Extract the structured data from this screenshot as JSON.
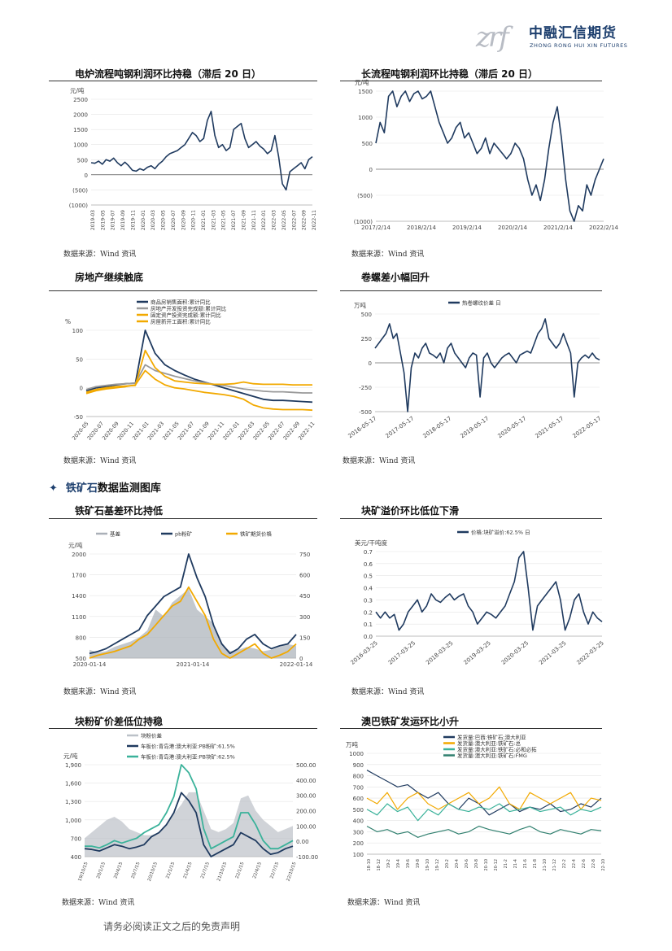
{
  "header": {
    "logo_mark": "zrf",
    "logo_cn": "中融汇信期货",
    "logo_en": "ZHONG RONG HUI XIN FUTURES"
  },
  "section": {
    "marker": "✦",
    "title_part1": "铁矿石",
    "title_part2": "数据监测图库"
  },
  "footer": {
    "disclaimer": "请务必阅读正文之后的免责声明"
  },
  "charts": [
    {
      "title": "电炉流程吨钢利润环比持稳（滞后 20 日）",
      "source": "数据来源：Wind 资讯"
    },
    {
      "title": "长流程吨钢利润环比持稳（滞后 20 日）",
      "source": "数据来源：Wind 资讯"
    },
    {
      "title": "房地产继续触底",
      "source": "数据来源：Wind 资讯"
    },
    {
      "title": "卷螺差小幅回升",
      "source": "数据来源：Wind 资讯"
    },
    {
      "title": "铁矿石基差环比持低",
      "source": "数据来源：Wind 资讯"
    },
    {
      "title": "块矿溢价环比低位下滑",
      "source": "数据来源：Wind 资讯"
    },
    {
      "title": "块粉矿价差低位持稳",
      "source": "数据来源：Wind 资讯"
    },
    {
      "title": "澳巴铁矿发运环比小升",
      "source": "数据来源：Wind 资讯"
    }
  ],
  "chart_data": [
    {
      "type": "line",
      "color": "#1f3a5f",
      "ylabel": "元/吨",
      "ylim": [
        -1000,
        2500
      ],
      "yticks": [
        "2500",
        "2000",
        "1500",
        "1000",
        "500",
        "0",
        "(500)",
        "(1000)"
      ],
      "xticks": [
        "2019-03",
        "2019-05",
        "2019-07",
        "2019-09",
        "2019-11",
        "2020-01",
        "2020-03",
        "2020-05",
        "2020-07",
        "2020-09",
        "2020-11",
        "2021-01",
        "2021-03",
        "2021-05",
        "2021-07",
        "2021-09",
        "2021-11",
        "2022-01",
        "2022-03",
        "2022-05",
        "2022-07",
        "2022-09",
        "2022-11"
      ],
      "values": [
        400,
        380,
        450,
        350,
        500,
        450,
        550,
        400,
        300,
        420,
        300,
        150,
        120,
        200,
        150,
        250,
        300,
        200,
        350,
        450,
        600,
        700,
        750,
        800,
        900,
        1000,
        1200,
        1400,
        1300,
        1100,
        1200,
        1800,
        2100,
        1300,
        900,
        1000,
        800,
        900,
        1500,
        1600,
        1700,
        1200,
        900,
        1000,
        1100,
        950,
        850,
        700,
        800,
        1300,
        600,
        -300,
        -500,
        100,
        200,
        300,
        400,
        200,
        500,
        600
      ]
    },
    {
      "type": "line",
      "color": "#1f3a5f",
      "ylabel": "元/吨",
      "ylim": [
        -1000,
        1500
      ],
      "yticks": [
        "1500",
        "1000",
        "500",
        "0",
        "(500)",
        "(1000)"
      ],
      "xticks": [
        "2017/2/14",
        "2018/2/14",
        "2019/2/14",
        "2020/2/14",
        "2021/2/14",
        "2022/2/14"
      ],
      "values": [
        500,
        900,
        700,
        1400,
        1500,
        1200,
        1400,
        1500,
        1300,
        1450,
        1500,
        1350,
        1400,
        1500,
        1200,
        900,
        700,
        500,
        600,
        800,
        900,
        600,
        700,
        500,
        300,
        400,
        600,
        300,
        500,
        400,
        300,
        200,
        300,
        500,
        400,
        200,
        -200,
        -500,
        -300,
        -600,
        -200,
        400,
        900,
        1200,
        600,
        -200,
        -800,
        -1000,
        -700,
        -800,
        -300,
        -500,
        -200,
        0,
        200
      ]
    },
    {
      "type": "line",
      "ylabel": "%",
      "ylim": [
        -50,
        100
      ],
      "yticks": [
        "100",
        "50",
        "0",
        "-50"
      ],
      "xticks": [
        "2020-05",
        "2020-07",
        "2020-09",
        "2020-11",
        "2021-01",
        "2021-03",
        "2021-05",
        "2021-07",
        "2021-09",
        "2021-11",
        "2022-01",
        "2022-03",
        "2022-05",
        "2022-07",
        "2022-09",
        "2022-11"
      ],
      "series": [
        {
          "name": "商品房销售面积:累计同比",
          "color": "#1f3a5f",
          "values": [
            -5,
            0,
            2,
            5,
            7,
            8,
            100,
            60,
            40,
            30,
            22,
            15,
            10,
            5,
            0,
            -5,
            -10,
            -15,
            -20,
            -22,
            -22,
            -23,
            -24,
            -25
          ]
        },
        {
          "name": "房地产开发投资完成额:累计同比",
          "color": "#9a9a9a",
          "values": [
            -3,
            2,
            4,
            6,
            7,
            8,
            40,
            30,
            25,
            20,
            16,
            12,
            9,
            6,
            4,
            1,
            -2,
            -4,
            -6,
            -7,
            -7,
            -8,
            -9,
            -9
          ]
        },
        {
          "name": "固定资产投资完成额:累计同比",
          "color": "#f2a900",
          "values": [
            -8,
            -3,
            0,
            2,
            3,
            4,
            65,
            35,
            20,
            12,
            10,
            8,
            7,
            6,
            6,
            7,
            10,
            7,
            6,
            6,
            6,
            5,
            5,
            5
          ]
        },
        {
          "name": "房屋新开工面积:累计同比",
          "color": "#f2a900",
          "values": [
            -10,
            -5,
            -2,
            0,
            2,
            5,
            30,
            15,
            5,
            0,
            -2,
            -5,
            -8,
            -10,
            -12,
            -15,
            -20,
            -30,
            -35,
            -37,
            -38,
            -38,
            -38,
            -39
          ]
        }
      ]
    },
    {
      "type": "line",
      "ylabel": "万吨",
      "legend": "热卷螺纹价差 日",
      "color": "#1f3a5f",
      "ylim": [
        -500,
        500
      ],
      "yticks": [
        "500",
        "250",
        "0",
        "-250",
        "-500"
      ],
      "xticks": [
        "2016-05-17",
        "2017-05-17",
        "2018-05-17",
        "2019-05-17",
        "2020-05-17",
        "2021-05-17",
        "2022-05-17"
      ],
      "values": [
        150,
        200,
        250,
        300,
        400,
        250,
        300,
        100,
        -100,
        -500,
        -50,
        100,
        50,
        150,
        200,
        100,
        80,
        50,
        100,
        0,
        150,
        200,
        100,
        50,
        0,
        -50,
        50,
        100,
        80,
        -350,
        50,
        100,
        0,
        -50,
        0,
        50,
        80,
        100,
        50,
        0,
        80,
        100,
        120,
        100,
        200,
        300,
        350,
        450,
        250,
        200,
        150,
        200,
        300,
        200,
        100,
        -350,
        0,
        50,
        80,
        50,
        100,
        50,
        30
      ]
    },
    {
      "type": "line",
      "ylabel": "元/吨",
      "yticks_left": [
        "2000",
        "1700",
        "1400",
        "1100",
        "800",
        "500"
      ],
      "yticks_right": [
        "750",
        "600",
        "450",
        "300",
        "150",
        "0"
      ],
      "xticks": [
        "2020-01-14",
        "2021-01-14",
        "2022-01-14"
      ],
      "series": [
        {
          "name": "基差",
          "color": "#aab0b8",
          "values": [
            60,
            40,
            50,
            80,
            100,
            120,
            150,
            200,
            350,
            300,
            400,
            450,
            500,
            350,
            300,
            250,
            100,
            50,
            60,
            80,
            70,
            50,
            60,
            80,
            100,
            90
          ]
        },
        {
          "name": "pb粉矿",
          "color": "#1f3a5f",
          "values": [
            700,
            720,
            750,
            800,
            850,
            900,
            950,
            1100,
            1200,
            1300,
            1350,
            1400,
            1750,
            1500,
            1300,
            1000,
            800,
            700,
            750,
            850,
            900,
            800,
            750,
            780,
            800,
            900
          ]
        },
        {
          "name": "铁矿期货价格",
          "color": "#f2a900",
          "values": [
            650,
            680,
            700,
            720,
            750,
            780,
            850,
            900,
            1000,
            1100,
            1200,
            1250,
            1400,
            1250,
            1100,
            850,
            700,
            650,
            700,
            750,
            800,
            700,
            650,
            680,
            720,
            800
          ]
        }
      ]
    },
    {
      "type": "line",
      "ylabel": "美元/干吨度",
      "legend": "价格:块矿溢价:62.5% 日",
      "color": "#1f3a5f",
      "ylim": [
        0,
        0.7
      ],
      "yticks": [
        "0.7",
        "0.6",
        "0.5",
        "0.4",
        "0.3",
        "0.2",
        "0.1",
        "0.0"
      ],
      "xticks": [
        "2016-03-25",
        "2017-03-25",
        "2018-03-25",
        "2019-03-25",
        "2020-03-25",
        "2021-03-25",
        "2022-03-25"
      ],
      "values": [
        0.2,
        0.15,
        0.2,
        0.15,
        0.18,
        0.05,
        0.1,
        0.2,
        0.25,
        0.3,
        0.2,
        0.25,
        0.35,
        0.3,
        0.28,
        0.32,
        0.35,
        0.3,
        0.33,
        0.35,
        0.25,
        0.2,
        0.1,
        0.15,
        0.2,
        0.18,
        0.15,
        0.2,
        0.25,
        0.35,
        0.45,
        0.65,
        0.7,
        0.4,
        0.05,
        0.25,
        0.3,
        0.35,
        0.4,
        0.45,
        0.3,
        0.05,
        0.15,
        0.3,
        0.35,
        0.2,
        0.1,
        0.2,
        0.15,
        0.12
      ]
    },
    {
      "type": "line",
      "ylabel": "元/吨",
      "yticks_left": [
        "1,900",
        "1,600",
        "1,300",
        "1,000",
        "700",
        "400"
      ],
      "yticks_right": [
        "500.00",
        "400.00",
        "300.00",
        "200.00",
        "100.00",
        "0.00",
        "-100.00"
      ],
      "xticks": [
        "19/10/15",
        "20/1/15",
        "20/4/15",
        "20/7/15",
        "20/10/15",
        "21/1/15",
        "21/4/15",
        "21/7/15",
        "21/10/15",
        "22/1/15",
        "22/4/15",
        "22/7/15",
        "22/10/15"
      ],
      "series": [
        {
          "name": "块粉价差",
          "color": "#bcc1c8",
          "values": [
            20,
            60,
            100,
            140,
            160,
            130,
            80,
            60,
            40,
            40,
            60,
            100,
            180,
            240,
            320,
            320,
            200,
            80,
            60,
            80,
            120,
            280,
            300,
            200,
            140,
            100,
            60,
            80,
            100
          ]
        },
        {
          "name": "车板价:青岛港:澳大利亚:PB粉矿:61.5%",
          "color": "#1f3a5f",
          "values": [
            850,
            840,
            820,
            860,
            900,
            880,
            850,
            870,
            900,
            1000,
            1050,
            1150,
            1300,
            1550,
            1450,
            1300,
            900,
            750,
            800,
            850,
            900,
            1050,
            1000,
            950,
            850,
            780,
            800,
            850,
            880
          ]
        },
        {
          "name": "车板价:青岛港:澳大利亚:PB块矿:62.5%",
          "color": "#3ab29a",
          "values": [
            880,
            880,
            860,
            900,
            950,
            920,
            950,
            980,
            1050,
            1100,
            1150,
            1300,
            1500,
            1900,
            1800,
            1600,
            1100,
            850,
            900,
            950,
            1000,
            1300,
            1300,
            1150,
            950,
            850,
            850,
            900,
            950
          ]
        }
      ]
    },
    {
      "type": "line",
      "ylabel": "万吨",
      "ylim": [
        100,
        1000
      ],
      "yticks": [
        "1000",
        "900",
        "800",
        "700",
        "600",
        "500",
        "400",
        "300",
        "200",
        "100"
      ],
      "xticks": [
        "18-10",
        "18-12",
        "19-2",
        "19-4",
        "19-6",
        "19-8",
        "19-10",
        "19-12",
        "20-2",
        "20-4",
        "20-6",
        "20-8",
        "20-10",
        "20-12",
        "21-2",
        "21-4",
        "21-6",
        "21-8",
        "21-10",
        "21-12",
        "22-2",
        "22-4",
        "22-6",
        "22-8",
        "22-10"
      ],
      "series": [
        {
          "name": "发货量:巴西:铁矿石:澳大利亚",
          "color": "#1f3a5f",
          "values": [
            850,
            800,
            750,
            700,
            720,
            650,
            600,
            650,
            550,
            500,
            600,
            550,
            450,
            500,
            550,
            480,
            520,
            500,
            550,
            480,
            500,
            550,
            520,
            600
          ]
        },
        {
          "name": "发货量:澳大利亚:铁矿石:总",
          "color": "#f2a900",
          "values": [
            600,
            550,
            650,
            500,
            600,
            650,
            550,
            500,
            550,
            600,
            650,
            550,
            600,
            700,
            550,
            500,
            650,
            600,
            550,
            600,
            650,
            500,
            600,
            580
          ]
        },
        {
          "name": "发货量:澳大利亚:铁矿石:必和必拓",
          "color": "#3ab29a",
          "values": [
            500,
            450,
            550,
            480,
            520,
            400,
            500,
            450,
            550,
            500,
            480,
            520,
            500,
            550,
            480,
            500,
            520,
            480,
            500,
            520,
            450,
            500,
            480,
            520
          ]
        },
        {
          "name": "发货量:澳大利亚:铁矿石:FMG",
          "color": "#2f7f6e",
          "values": [
            350,
            300,
            320,
            280,
            300,
            250,
            280,
            300,
            320,
            280,
            300,
            350,
            320,
            300,
            280,
            320,
            350,
            300,
            280,
            320,
            300,
            280,
            320,
            310
          ]
        }
      ]
    }
  ]
}
